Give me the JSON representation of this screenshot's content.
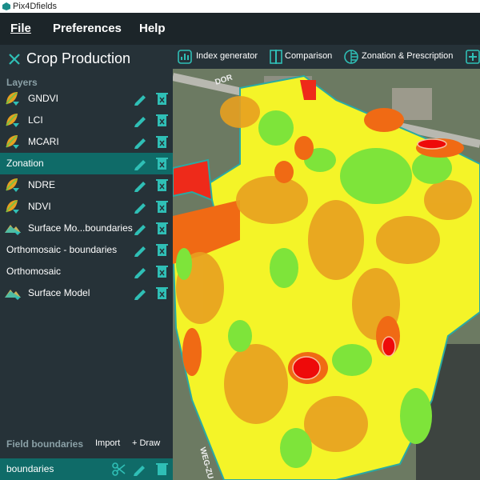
{
  "window": {
    "title": "Pix4Dfields"
  },
  "menu": [
    "File",
    "Preferences",
    "Help"
  ],
  "project": {
    "title": "Crop Production"
  },
  "toolbar": [
    "Index generator",
    "Comparison",
    "Zonation & Prescription"
  ],
  "layers": {
    "heading": "Layers",
    "items": [
      "GNDVI",
      "LCI",
      "MCARI",
      "Zonation",
      "NDRE",
      "NDVI",
      "Surface Mo...boundaries",
      "Orthomosaic - boundaries",
      "Orthomosaic",
      "Surface Model"
    ]
  },
  "field_boundaries": {
    "heading": "Field boundaries",
    "import": "Import",
    "draw": "+ Draw",
    "items": [
      "boundaries"
    ]
  },
  "map": {
    "road_labels": [
      "DOR",
      "WEG-ZU"
    ]
  }
}
